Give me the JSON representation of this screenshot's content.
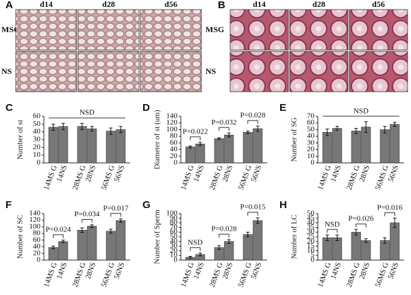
{
  "micrographs": [
    {
      "panel": "A",
      "columns": [
        "d14",
        "d28",
        "d56"
      ],
      "rows": [
        "MSG",
        "NS"
      ]
    },
    {
      "panel": "B",
      "columns": [
        "d14",
        "d28",
        "d56"
      ],
      "rows": [
        "MSG",
        "NS"
      ]
    }
  ],
  "chart_data": [
    {
      "type": "bar",
      "panel": "C",
      "ylabel": "Number of st",
      "categories": [
        "14MS G",
        "14NS",
        "28MS G",
        "28NS",
        "56MS G",
        "56NS"
      ],
      "values": [
        46,
        47,
        47,
        44,
        41,
        43
      ],
      "errors": [
        4,
        4,
        4,
        3,
        4,
        4
      ],
      "ylim": [
        0,
        60
      ],
      "yticks": [
        0,
        10,
        20,
        30,
        40,
        50,
        60
      ],
      "annotations": [
        "NSD"
      ],
      "color": "#777777"
    },
    {
      "type": "bar",
      "panel": "D",
      "ylabel": "Diameter of st (um)",
      "categories": [
        "14MS G",
        "14NS",
        "28MS G",
        "28NS",
        "56MS G",
        "56NS"
      ],
      "values": [
        48,
        57,
        73,
        84,
        92,
        103
      ],
      "errors": [
        3,
        5,
        3,
        6,
        4,
        8
      ],
      "ylim": [
        0,
        140
      ],
      "yticks": [
        0,
        20,
        40,
        60,
        80,
        100,
        120,
        140
      ],
      "annotations": [
        "P=0.022",
        "P=0.032",
        "P=0.028"
      ],
      "color": "#777777"
    },
    {
      "type": "bar",
      "panel": "E",
      "ylabel": "Number of SG",
      "categories": [
        "14MS G",
        "14NS",
        "28MS G",
        "28NS",
        "56MS G",
        "56NS"
      ],
      "values": [
        46,
        52,
        48,
        54,
        50,
        58
      ],
      "errors": [
        5,
        3,
        4,
        8,
        5,
        3
      ],
      "ylim": [
        0,
        70
      ],
      "yticks": [
        0,
        10,
        20,
        30,
        40,
        50,
        60,
        70
      ],
      "annotations": [
        "NSD"
      ],
      "color": "#777777"
    },
    {
      "type": "bar",
      "panel": "F",
      "ylabel": "Number of SC",
      "categories": [
        "14MS G",
        "14NS",
        "28MS G",
        "28NS",
        "56MS G",
        "56NS"
      ],
      "values": [
        38,
        56,
        90,
        102,
        87,
        119
      ],
      "errors": [
        4,
        4,
        7,
        4,
        6,
        5
      ],
      "ylim": [
        0,
        140
      ],
      "yticks": [
        0,
        20,
        40,
        60,
        80,
        100,
        120,
        140
      ],
      "annotations": [
        "P=0.024",
        "P=0.034",
        "P=0.017"
      ],
      "color": "#777777"
    },
    {
      "type": "bar",
      "panel": "G",
      "ylabel": "Number of Sperm",
      "categories": [
        "14MS G",
        "14NS",
        "28MS G",
        "28NS",
        "56MS G",
        "56NS"
      ],
      "values": [
        6,
        12,
        27,
        40,
        55,
        85
      ],
      "errors": [
        2,
        3,
        4,
        4,
        5,
        6
      ],
      "ylim": [
        0,
        100
      ],
      "yticks": [
        0,
        10,
        20,
        30,
        40,
        50,
        60,
        70,
        80,
        90,
        100
      ],
      "annotations": [
        "NSD",
        "P=0.028",
        "P=0.015"
      ],
      "color": "#777777"
    },
    {
      "type": "bar",
      "panel": "H",
      "ylabel": "Number of LC",
      "categories": [
        "14MS G",
        "14NS",
        "28MS G",
        "28NS",
        "56MS G",
        "56NS"
      ],
      "values": [
        24,
        24,
        30,
        21,
        21,
        40
      ],
      "errors": [
        3,
        3,
        3,
        2,
        3,
        5
      ],
      "ylim": [
        0,
        50
      ],
      "yticks": [
        0,
        5,
        10,
        15,
        20,
        25,
        30,
        35,
        40,
        45,
        50
      ],
      "annotations": [
        "NSD",
        "P=0.026",
        "P=0.016"
      ],
      "color": "#777777"
    }
  ]
}
